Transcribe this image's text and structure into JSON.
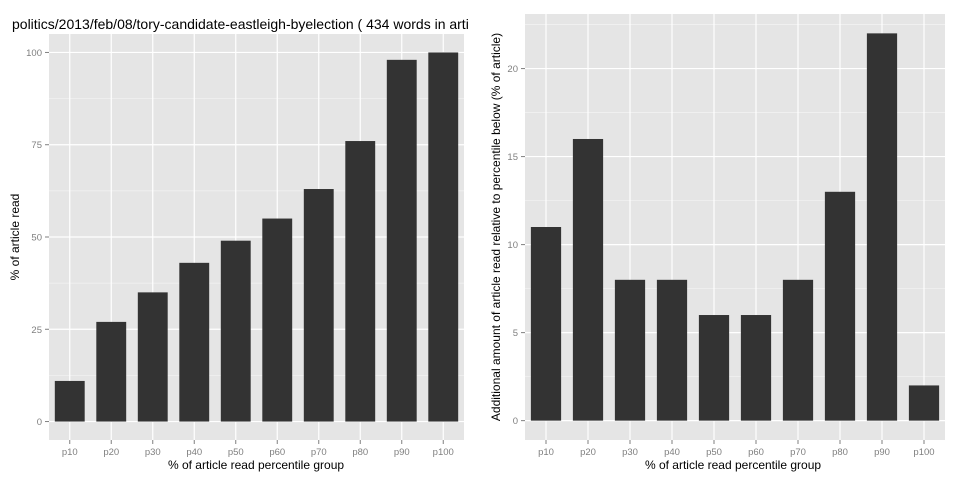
{
  "colors": {
    "panel_bg": "#e5e5e5",
    "grid_major": "#ffffff",
    "grid_minor": "#f2f2f2",
    "bar_fill": "#333333",
    "tick_text": "#7f7f7f",
    "title_text": "#000000"
  },
  "chart_data": [
    {
      "type": "bar",
      "title": "politics/2013/feb/08/tory-candidate-eastleigh-byelection ( 434 words in arti",
      "xlabel": "% of article read percentile group",
      "ylabel": "% of article read",
      "categories": [
        "p10",
        "p20",
        "p30",
        "p40",
        "p50",
        "p60",
        "p70",
        "p80",
        "p90",
        "p100"
      ],
      "values": [
        11,
        27,
        35,
        43,
        49,
        55,
        63,
        76,
        98,
        100
      ],
      "ylim": [
        -5,
        105
      ],
      "yticks": [
        0,
        25,
        50,
        75,
        100
      ],
      "grid": true,
      "legend": "none"
    },
    {
      "type": "bar",
      "title": "",
      "xlabel": "% of article read percentile group",
      "ylabel": "Additional amount of article read relative to percentile below (% of article)",
      "categories": [
        "p10",
        "p20",
        "p30",
        "p40",
        "p50",
        "p60",
        "p70",
        "p80",
        "p90",
        "p100"
      ],
      "values": [
        11,
        16,
        8,
        8,
        6,
        6,
        8,
        13,
        22,
        2
      ],
      "ylim": [
        -1.1,
        23.1
      ],
      "yticks": [
        0,
        5,
        10,
        15,
        20
      ],
      "grid": true,
      "legend": "none"
    }
  ]
}
